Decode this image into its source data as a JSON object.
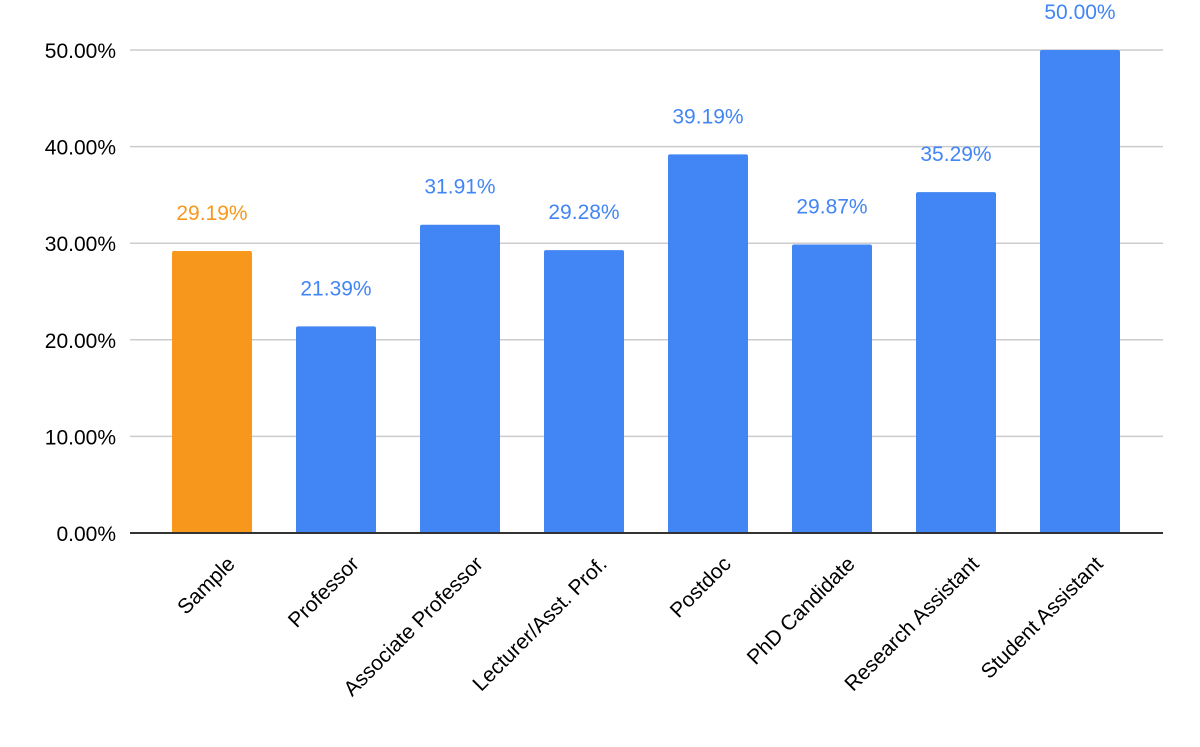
{
  "chart_data": {
    "type": "bar",
    "categories": [
      "Sample",
      "Professor",
      "Associate Professor",
      "Lecturer/Asst. Prof.",
      "Postdoc",
      "PhD Candidate",
      "Research Assistant",
      "Student Assistant"
    ],
    "values": [
      29.19,
      21.39,
      31.91,
      29.28,
      39.19,
      29.87,
      35.29,
      50.0
    ],
    "data_labels": [
      "29.19%",
      "21.39%",
      "31.91%",
      "29.28%",
      "39.19%",
      "29.87%",
      "35.29%",
      "50.00%"
    ],
    "bar_colors": [
      "#f7971c",
      "#4285f4",
      "#4285f4",
      "#4285f4",
      "#4285f4",
      "#4285f4",
      "#4285f4",
      "#4285f4"
    ],
    "label_colors": [
      "#f7971c",
      "#4285f4",
      "#4285f4",
      "#4285f4",
      "#4285f4",
      "#4285f4",
      "#4285f4",
      "#4285f4"
    ],
    "y_ticks": [
      0,
      10,
      20,
      30,
      40,
      50
    ],
    "y_tick_labels": [
      "0.00%",
      "10.00%",
      "20.00%",
      "30.00%",
      "40.00%",
      "50.00%"
    ],
    "ylim": [
      0,
      50
    ],
    "grid": true,
    "legend": "none",
    "title": "",
    "xlabel": "",
    "ylabel": ""
  }
}
